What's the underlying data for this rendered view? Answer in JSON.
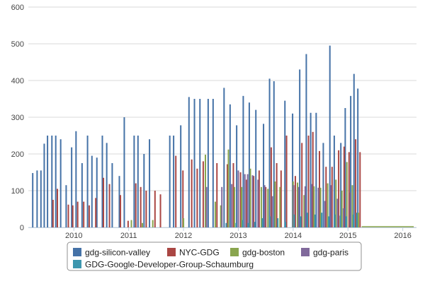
{
  "chart_data": {
    "type": "bar",
    "title": "",
    "xlabel": "",
    "ylabel": "",
    "ylim": [
      0,
      600
    ],
    "yticks": [
      0,
      100,
      200,
      300,
      400,
      500,
      600
    ],
    "xlim": [
      2009.17,
      2016.25
    ],
    "xticks": [
      2010,
      2011,
      2012,
      2013,
      2014,
      2015,
      2016
    ],
    "xtick_labels": [
      "2010",
      "2011",
      "2012",
      "2013",
      "2014",
      "2015",
      "2016"
    ],
    "grid": true,
    "legend_position": "bottom",
    "series": [
      {
        "name": "gdg-silicon-valley",
        "color": "#4572a7",
        "points": [
          [
            2009.25,
            148
          ],
          [
            2009.33,
            155
          ],
          [
            2009.4,
            155
          ],
          [
            2009.46,
            228
          ],
          [
            2009.52,
            250
          ],
          [
            2009.6,
            250
          ],
          [
            2009.67,
            250
          ],
          [
            2009.76,
            240
          ],
          [
            2009.86,
            115
          ],
          [
            2009.96,
            218
          ],
          [
            2010.04,
            262
          ],
          [
            2010.15,
            175
          ],
          [
            2010.25,
            250
          ],
          [
            2010.33,
            195
          ],
          [
            2010.42,
            190
          ],
          [
            2010.52,
            250
          ],
          [
            2010.6,
            230
          ],
          [
            2010.7,
            175
          ],
          [
            2010.83,
            140
          ],
          [
            2010.92,
            300
          ],
          [
            2011.1,
            250
          ],
          [
            2011.17,
            250
          ],
          [
            2011.28,
            200
          ],
          [
            2011.38,
            240
          ],
          [
            2011.75,
            250
          ],
          [
            2011.82,
            250
          ],
          [
            2011.95,
            278
          ],
          [
            2012.1,
            355
          ],
          [
            2012.2,
            350
          ],
          [
            2012.3,
            350
          ],
          [
            2012.45,
            350
          ],
          [
            2012.54,
            350
          ],
          [
            2012.74,
            380
          ],
          [
            2012.85,
            335
          ],
          [
            2012.97,
            278
          ],
          [
            2013.09,
            358
          ],
          [
            2013.2,
            340
          ],
          [
            2013.32,
            320
          ],
          [
            2013.46,
            282
          ],
          [
            2013.57,
            405
          ],
          [
            2013.65,
            398
          ],
          [
            2013.85,
            345
          ],
          [
            2013.99,
            310
          ],
          [
            2014.12,
            430
          ],
          [
            2014.24,
            472
          ],
          [
            2014.32,
            312
          ],
          [
            2014.42,
            312
          ],
          [
            2014.55,
            230
          ],
          [
            2014.67,
            495
          ],
          [
            2014.75,
            250
          ],
          [
            2014.87,
            230
          ],
          [
            2014.95,
            325
          ],
          [
            2015.05,
            358
          ],
          [
            2015.11,
            418
          ],
          [
            2015.18,
            378
          ]
        ]
      },
      {
        "name": "NYC-GDG",
        "color": "#aa4643",
        "points": [
          [
            2009.62,
            75
          ],
          [
            2009.7,
            105
          ],
          [
            2009.9,
            62
          ],
          [
            2009.98,
            60
          ],
          [
            2010.07,
            70
          ],
          [
            2010.18,
            70
          ],
          [
            2010.28,
            60
          ],
          [
            2010.4,
            80
          ],
          [
            2010.54,
            135
          ],
          [
            2010.65,
            118
          ],
          [
            2010.85,
            88
          ],
          [
            2010.99,
            18
          ],
          [
            2011.13,
            120
          ],
          [
            2011.22,
            110
          ],
          [
            2011.32,
            100
          ],
          [
            2011.48,
            100
          ],
          [
            2011.58,
            90
          ],
          [
            2011.86,
            195
          ],
          [
            2011.99,
            155
          ],
          [
            2012.15,
            185
          ],
          [
            2012.25,
            160
          ],
          [
            2012.36,
            180
          ],
          [
            2012.61,
            175
          ],
          [
            2012.8,
            172
          ],
          [
            2012.91,
            175
          ],
          [
            2013.04,
            150
          ],
          [
            2013.15,
            130
          ],
          [
            2013.28,
            140
          ],
          [
            2013.38,
            155
          ],
          [
            2013.5,
            110
          ],
          [
            2013.6,
            218
          ],
          [
            2013.7,
            175
          ],
          [
            2013.78,
            155
          ],
          [
            2013.88,
            250
          ],
          [
            2014.04,
            140
          ],
          [
            2014.16,
            230
          ],
          [
            2014.28,
            250
          ],
          [
            2014.36,
            260
          ],
          [
            2014.48,
            208
          ],
          [
            2014.6,
            165
          ],
          [
            2014.71,
            165
          ],
          [
            2014.83,
            210
          ],
          [
            2014.93,
            220
          ],
          [
            2015.02,
            205
          ],
          [
            2015.14,
            240
          ],
          [
            2015.22,
            205
          ]
        ]
      },
      {
        "name": "gdg-boston",
        "color": "#89a54e",
        "points": [
          [
            2011.05,
            20
          ],
          [
            2011.25,
            12
          ],
          [
            2011.44,
            20
          ],
          [
            2012.0,
            25
          ],
          [
            2012.4,
            198
          ],
          [
            2012.58,
            70
          ],
          [
            2012.68,
            60
          ],
          [
            2012.82,
            212
          ],
          [
            2012.93,
            110
          ],
          [
            2013.06,
            110
          ],
          [
            2013.22,
            160
          ],
          [
            2013.42,
            110
          ],
          [
            2013.54,
            105
          ],
          [
            2013.67,
            125
          ],
          [
            2013.76,
            110
          ],
          [
            2014.0,
            125
          ],
          [
            2014.08,
            122
          ],
          [
            2014.2,
            88
          ],
          [
            2014.38,
            112
          ],
          [
            2014.5,
            108
          ],
          [
            2014.63,
            120
          ],
          [
            2014.78,
            130
          ],
          [
            2014.89,
            100
          ],
          [
            2014.98,
            178
          ],
          [
            2015.08,
            115
          ],
          [
            2015.19,
            40
          ]
        ]
      },
      {
        "name": "gdg-paris",
        "color": "#80699b",
        "points": [
          [
            2012.42,
            110
          ],
          [
            2012.7,
            110
          ],
          [
            2012.88,
            118
          ],
          [
            2013.0,
            155
          ],
          [
            2013.12,
            145
          ],
          [
            2013.17,
            145
          ],
          [
            2013.26,
            142
          ],
          [
            2013.36,
            130
          ],
          [
            2013.48,
            115
          ],
          [
            2013.62,
            85
          ],
          [
            2014.01,
            115
          ],
          [
            2014.1,
            110
          ],
          [
            2014.22,
            112
          ],
          [
            2014.34,
            118
          ],
          [
            2014.46,
            108
          ],
          [
            2014.58,
            72
          ],
          [
            2014.69,
            115
          ],
          [
            2014.81,
            78
          ],
          [
            2014.92,
            52
          ],
          [
            2015.04,
            95
          ]
        ]
      },
      {
        "name": "GDG-Google-Developer-Group-Schaumburg",
        "color": "#3d96ae",
        "points": [
          [
            2012.78,
            12
          ],
          [
            2012.96,
            12
          ],
          [
            2013.08,
            20
          ],
          [
            2013.18,
            12
          ],
          [
            2013.3,
            15
          ],
          [
            2013.44,
            25
          ],
          [
            2013.58,
            30
          ],
          [
            2013.72,
            25
          ],
          [
            2013.86,
            15
          ],
          [
            2014.02,
            35
          ],
          [
            2014.14,
            30
          ],
          [
            2014.26,
            40
          ],
          [
            2014.4,
            35
          ],
          [
            2014.52,
            40
          ],
          [
            2014.65,
            30
          ],
          [
            2014.76,
            35
          ],
          [
            2014.86,
            32
          ],
          [
            2014.97,
            30
          ],
          [
            2015.1,
            35
          ],
          [
            2015.16,
            40
          ]
        ]
      }
    ]
  }
}
